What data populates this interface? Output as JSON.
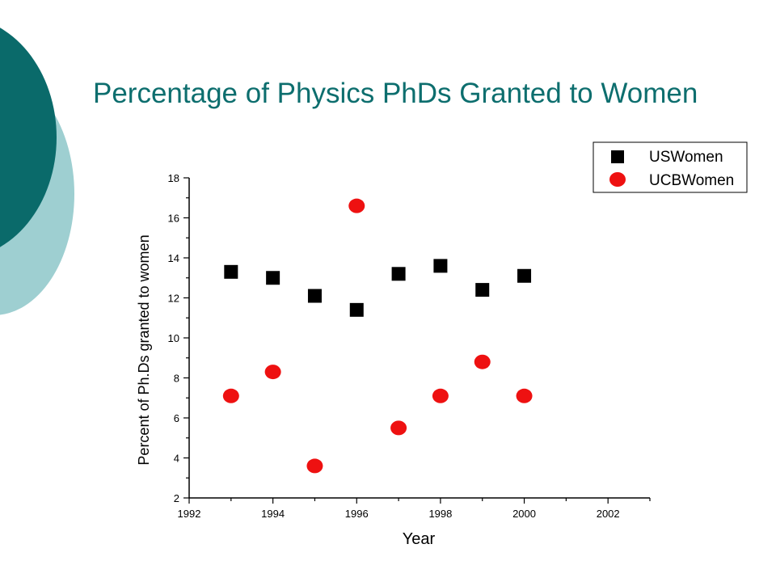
{
  "slide": {
    "title": "Percentage of Physics PhDs Granted to Women",
    "accent_dark": "#0a6a6a",
    "accent_light": "#9ecfd1"
  },
  "chart_data": {
    "type": "scatter",
    "xlabel": "Year",
    "ylabel": "Percent of Ph.Ds granted to women",
    "xlim": [
      1992,
      2003
    ],
    "ylim": [
      2,
      18
    ],
    "xticks": [
      1992,
      1994,
      1996,
      1998,
      2000,
      2002
    ],
    "yticks": [
      2,
      4,
      6,
      8,
      10,
      12,
      14,
      16,
      18
    ],
    "grid": false,
    "legend_position": "top-right",
    "series": [
      {
        "name": "USWomen",
        "marker": "square",
        "color": "#000000",
        "x": [
          1993,
          1994,
          1995,
          1996,
          1997,
          1998,
          1999,
          2000
        ],
        "y": [
          13.3,
          13.0,
          12.1,
          11.4,
          13.2,
          13.6,
          12.4,
          13.1
        ]
      },
      {
        "name": "UCBWomen",
        "marker": "circle",
        "color": "#ee1111",
        "x": [
          1993,
          1994,
          1995,
          1996,
          1997,
          1998,
          1999,
          2000
        ],
        "y": [
          7.1,
          8.3,
          3.6,
          16.6,
          5.5,
          7.1,
          8.8,
          7.1
        ]
      }
    ]
  }
}
